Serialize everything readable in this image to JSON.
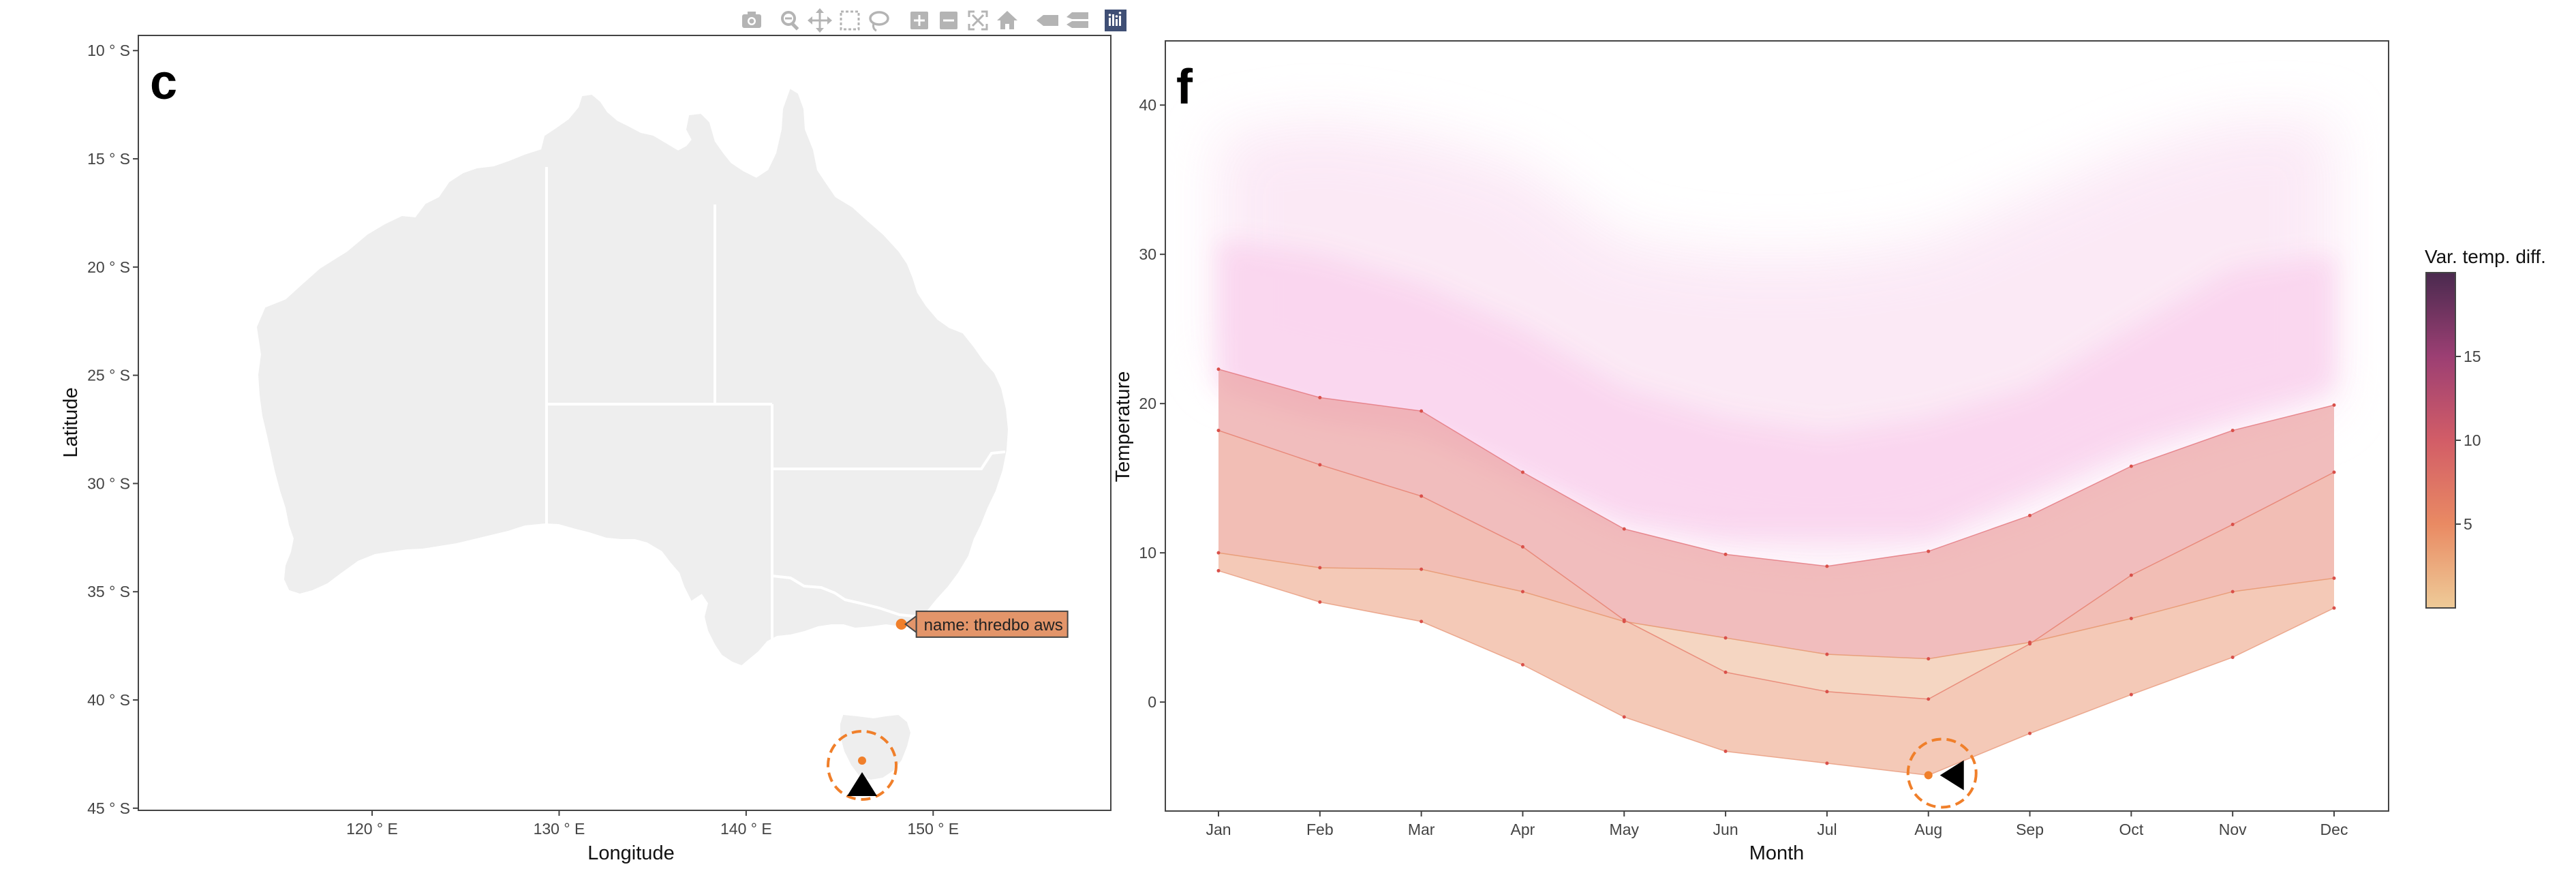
{
  "modebar": {
    "buttons": [
      {
        "name": "camera-icon",
        "label": "Download plot as a png"
      },
      {
        "name": "zoom-icon",
        "label": "Zoom"
      },
      {
        "name": "pan-icon",
        "label": "Pan"
      },
      {
        "name": "box-select-icon",
        "label": "Box Select"
      },
      {
        "name": "lasso-select-icon",
        "label": "Lasso Select"
      },
      {
        "name": "zoom-in-icon",
        "label": "Zoom in"
      },
      {
        "name": "zoom-out-icon",
        "label": "Zoom out"
      },
      {
        "name": "autoscale-icon",
        "label": "Autoscale"
      },
      {
        "name": "reset-axes-icon",
        "label": "Reset axes"
      },
      {
        "name": "hover-closest-icon",
        "label": "Show closest data on hover"
      },
      {
        "name": "hover-compare-icon",
        "label": "Compare data on hover"
      },
      {
        "name": "plotly-logo-icon",
        "label": "Produced with Plotly"
      }
    ]
  },
  "colors": {
    "map_fill": "#eeeeee",
    "map_border": "#ffffff",
    "accent_orange": "#f07f2a",
    "tooltip_bg": "#e3956a",
    "band_outer": "#f3cfb7",
    "band_mid": "#eba3a3",
    "band_inner": "#f2bfae",
    "band_pink": "#fad6ef"
  },
  "chart_data": [
    {
      "type": "scatter",
      "panel": "c",
      "xlabel": "Longitude",
      "ylabel": "Latitude",
      "x_ticks": [
        {
          "value": 120,
          "label": "120 ° E"
        },
        {
          "value": 130,
          "label": "130 ° E"
        },
        {
          "value": 140,
          "label": "140 ° E"
        },
        {
          "value": 150,
          "label": "150 ° E"
        }
      ],
      "y_ticks": [
        {
          "value": -10,
          "label": "10 ° S"
        },
        {
          "value": -15,
          "label": "15 ° S"
        },
        {
          "value": -20,
          "label": "20 ° S"
        },
        {
          "value": -25,
          "label": "25 ° S"
        },
        {
          "value": -30,
          "label": "30 ° S"
        },
        {
          "value": -35,
          "label": "35 ° S"
        },
        {
          "value": -40,
          "label": "40 ° S"
        },
        {
          "value": -45,
          "label": "45 ° S"
        }
      ],
      "xlim": [
        107.5,
        159.5
      ],
      "ylim": [
        -45.1,
        -9.3
      ],
      "points": [
        {
          "name": "thredbo aws",
          "lon": 148.3,
          "lat": -36.5,
          "hover": "name: thredbo aws"
        },
        {
          "name": "",
          "lon": 146.2,
          "lat": -42.8
        }
      ],
      "grid": false
    },
    {
      "type": "area",
      "panel": "f",
      "xlabel": "Month",
      "ylabel": "Temperature",
      "categories": [
        "Jan",
        "Feb",
        "Mar",
        "Apr",
        "May",
        "Jun",
        "Jul",
        "Aug",
        "Sep",
        "Oct",
        "Nov",
        "Dec"
      ],
      "y_ticks": [
        0,
        10,
        20,
        30,
        40
      ],
      "ylim": [
        -7.3,
        44.3
      ],
      "series": [
        {
          "values": [
            8.8,
            6.7,
            5.4,
            2.5,
            -1.0,
            -3.3,
            -4.1,
            -4.9,
            -2.1,
            0.5,
            3.0,
            6.3
          ]
        },
        {
          "values": [
            10.0,
            9.0,
            8.9,
            7.4,
            5.4,
            4.3,
            3.2,
            2.9,
            4.0,
            5.6,
            7.4,
            8.3
          ]
        },
        {
          "values": [
            18.2,
            15.9,
            13.8,
            10.4,
            5.5,
            2.0,
            0.7,
            0.2,
            3.9,
            8.5,
            11.9,
            15.4
          ]
        },
        {
          "values": [
            22.3,
            20.4,
            19.5,
            15.4,
            11.6,
            9.9,
            9.1,
            10.1,
            12.5,
            15.8,
            18.2,
            19.9
          ]
        }
      ],
      "highlight": {
        "category": "Aug",
        "value": -4.9
      },
      "colorbar": {
        "title": "Var. temp. diff.",
        "ticks": [
          5,
          10,
          15
        ],
        "range": [
          0,
          20
        ]
      },
      "grid": false
    }
  ]
}
